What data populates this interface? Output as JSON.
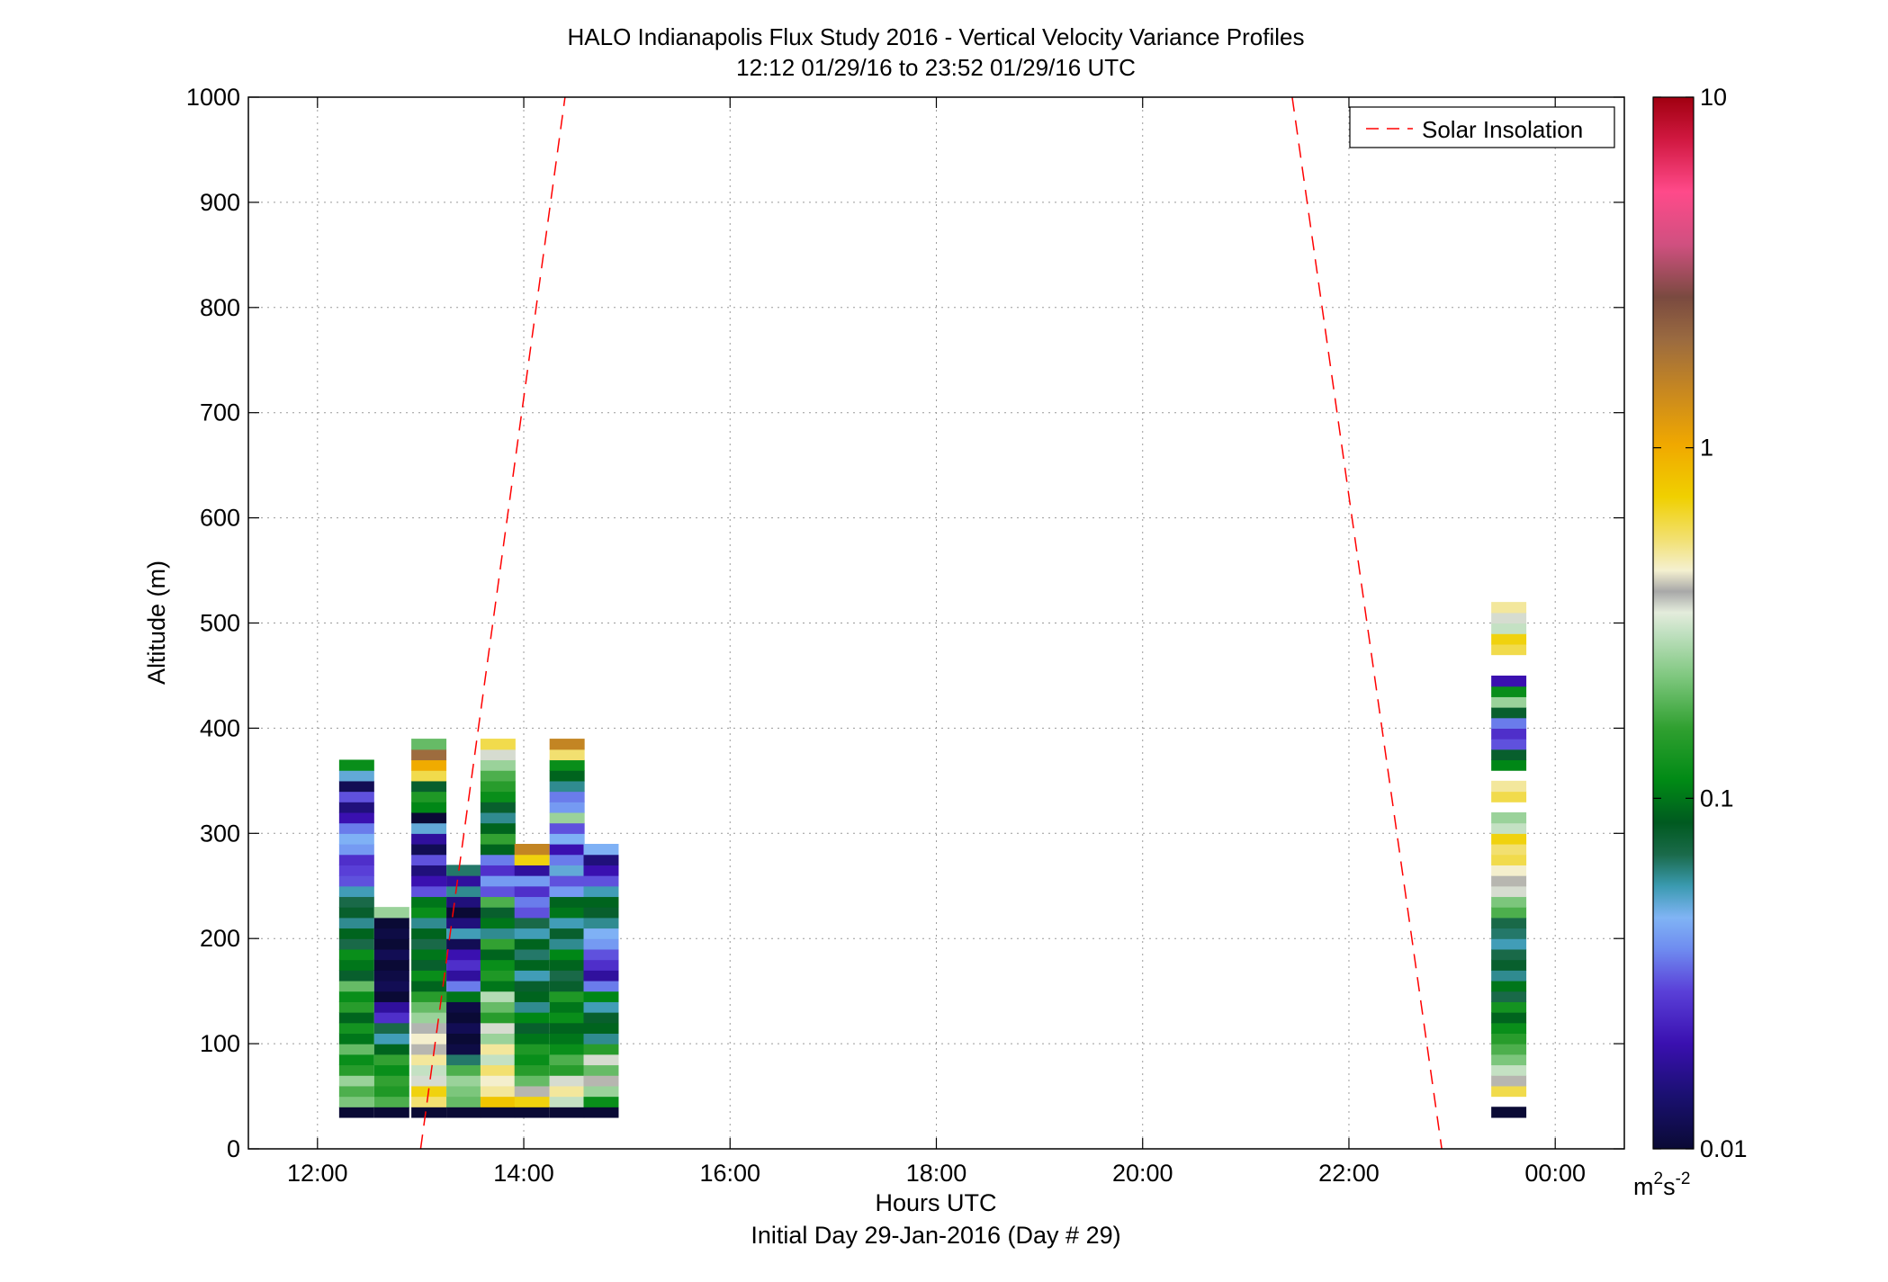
{
  "chart_data": {
    "type": "heatmap",
    "title": "HALO Indianapolis Flux Study 2016 - Vertical Velocity Variance Profiles",
    "subtitle": "12:12 01/29/16 to 23:52 01/29/16  UTC",
    "xlabel": "Hours UTC",
    "xlabel2": "Initial Day 29-Jan-2016 (Day # 29)",
    "ylabel": "Altitude (m)",
    "xlim": [
      11.33,
      24.67
    ],
    "ylim": [
      0,
      1000
    ],
    "x_ticks": [
      12,
      14,
      16,
      18,
      20,
      22,
      24
    ],
    "x_tick_labels": [
      "12:00",
      "14:00",
      "16:00",
      "18:00",
      "20:00",
      "22:00",
      "00:00"
    ],
    "y_ticks": [
      0,
      100,
      200,
      300,
      400,
      500,
      600,
      700,
      800,
      900,
      1000
    ],
    "y_tick_labels": [
      "0",
      "100",
      "200",
      "300",
      "400",
      "500",
      "600",
      "700",
      "800",
      "900",
      "1000"
    ],
    "grid": true,
    "legend": {
      "position": "top-right",
      "entries": [
        "Solar Insolation"
      ]
    },
    "colorbar": {
      "scale": "log",
      "range": [
        0.01,
        10
      ],
      "tick_values": [
        0.01,
        0.1,
        1,
        10
      ],
      "tick_labels": [
        "0.01",
        "0.1",
        "1",
        "10"
      ],
      "unit_base": "m",
      "unit_exp1": "2",
      "unit_mid": "s",
      "unit_exp2": "-2"
    },
    "solar_insolation": [
      {
        "x": [
          13.0,
          14.4
        ],
        "y": [
          0,
          1000
        ]
      },
      {
        "x": [
          21.45,
          22.9
        ],
        "y": [
          1000,
          0
        ]
      }
    ],
    "profile_bin_height_m": 10,
    "profiles": [
      {
        "time": 12.38,
        "values": [
          0.01,
          0.22,
          0.18,
          0.25,
          0.15,
          0.12,
          0.2,
          0.1,
          0.13,
          0.09,
          0.15,
          0.12,
          0.2,
          0.08,
          0.1,
          0.12,
          0.07,
          0.09,
          0.06,
          0.08,
          0.07,
          0.055,
          0.03,
          0.028,
          0.025,
          0.04,
          0.045,
          0.035,
          0.02,
          0.015,
          0.03,
          0.012,
          0.05,
          0.12
        ]
      },
      {
        "time": 12.72,
        "values": [
          0.01,
          0.18,
          0.14,
          0.16,
          0.12,
          0.16,
          0.09,
          0.055,
          0.07,
          0.025,
          0.018,
          0.01,
          0.012,
          0.011,
          0.01,
          0.012,
          0.01,
          0.011,
          0.01,
          0.25
        ]
      },
      {
        "time": 13.08,
        "values": [
          0.01,
          0.55,
          0.7,
          0.35,
          0.3,
          0.5,
          0.4,
          0.45,
          0.38,
          0.25,
          0.2,
          0.15,
          0.09,
          0.12,
          0.08,
          0.1,
          0.07,
          0.09,
          0.06,
          0.12,
          0.1,
          0.03,
          0.02,
          0.015,
          0.03,
          0.012,
          0.018,
          0.05,
          0.01,
          0.11,
          0.14,
          0.08,
          0.6,
          1.0,
          2.0,
          0.2
        ]
      },
      {
        "time": 13.42,
        "values": [
          0.01,
          0.2,
          0.22,
          0.25,
          0.18,
          0.065,
          0.011,
          0.01,
          0.012,
          0.01,
          0.011,
          0.1,
          0.035,
          0.018,
          0.025,
          0.02,
          0.012,
          0.055,
          0.015,
          0.01,
          0.015,
          0.06,
          0.018,
          0.065
        ]
      },
      {
        "time": 13.75,
        "values": [
          0.01,
          0.8,
          0.5,
          0.45,
          0.55,
          0.3,
          0.5,
          0.25,
          0.35,
          0.15,
          0.2,
          0.28,
          0.1,
          0.14,
          0.12,
          0.09,
          0.16,
          0.06,
          0.1,
          0.08,
          0.18,
          0.03,
          0.04,
          0.025,
          0.035,
          0.09,
          0.16,
          0.09,
          0.06,
          0.08,
          0.12,
          0.15,
          0.18,
          0.25,
          0.35,
          0.6
        ]
      },
      {
        "time": 14.08,
        "values": [
          0.01,
          0.7,
          0.4,
          0.2,
          0.15,
          0.12,
          0.14,
          0.1,
          0.08,
          0.11,
          0.06,
          0.09,
          0.08,
          0.055,
          0.09,
          0.065,
          0.09,
          0.055,
          0.07,
          0.03,
          0.035,
          0.025,
          0.04,
          0.018,
          0.7,
          1.5
        ]
      },
      {
        "time": 14.42,
        "values": [
          0.01,
          0.3,
          0.5,
          0.35,
          0.15,
          0.18,
          0.12,
          0.1,
          0.09,
          0.12,
          0.1,
          0.14,
          0.08,
          0.07,
          0.09,
          0.11,
          0.06,
          0.08,
          0.055,
          0.1,
          0.09,
          0.04,
          0.03,
          0.05,
          0.035,
          0.02,
          0.045,
          0.03,
          0.25,
          0.04,
          0.035,
          0.06,
          0.09,
          0.12,
          0.55,
          1.5
        ]
      },
      {
        "time": 14.75,
        "values": [
          0.01,
          0.12,
          0.25,
          0.4,
          0.2,
          0.35,
          0.15,
          0.06,
          0.09,
          0.08,
          0.055,
          0.11,
          0.035,
          0.018,
          0.025,
          0.03,
          0.04,
          0.045,
          0.06,
          0.08,
          0.09,
          0.055,
          0.03,
          0.02,
          0.015,
          0.045
        ]
      },
      {
        "time": 23.55,
        "values": [
          0.01,
          null,
          0.6,
          0.4,
          0.3,
          0.22,
          0.18,
          0.15,
          0.12,
          0.09,
          0.13,
          0.07,
          0.1,
          0.06,
          0.08,
          0.07,
          0.055,
          0.065,
          0.07,
          0.18,
          0.22,
          0.35,
          0.4,
          0.45,
          0.6,
          0.55,
          0.7,
          0.3,
          0.25,
          null,
          0.6,
          0.5,
          null,
          0.11,
          0.08,
          0.03,
          0.025,
          0.035,
          0.08,
          0.25,
          0.12,
          0.02,
          null,
          null,
          0.6,
          0.7,
          0.3,
          0.35,
          0.5
        ]
      }
    ]
  }
}
